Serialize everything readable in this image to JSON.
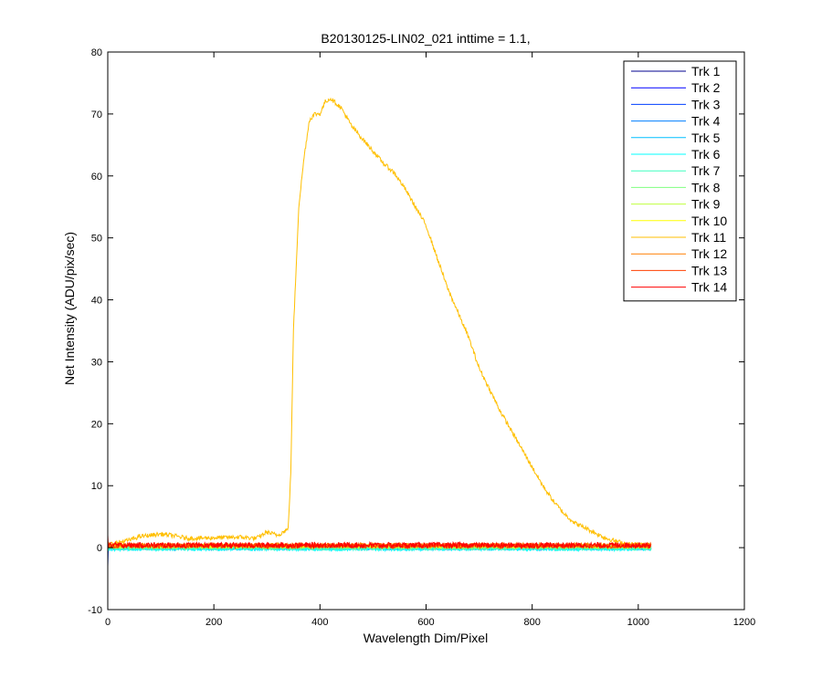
{
  "chart_data": {
    "type": "line",
    "title": "B20130125-LIN02_021 inttime = 1.1,",
    "xlabel": "Wavelength Dim/Pixel",
    "ylabel": "Net Intensity (ADU/pix/sec)",
    "xlim": [
      0,
      1200
    ],
    "ylim": [
      -10,
      80
    ],
    "xticks": [
      0,
      200,
      400,
      600,
      800,
      1000,
      1200
    ],
    "yticks": [
      -10,
      0,
      10,
      20,
      30,
      40,
      50,
      60,
      70,
      80
    ],
    "grid": false,
    "legend_position": "top-right",
    "series": [
      {
        "name": "Trk 1",
        "color": "#00008f",
        "baseline": 0.2,
        "noise": 0.25
      },
      {
        "name": "Trk 2",
        "color": "#0000ff",
        "baseline": 0.1,
        "noise": 0.3
      },
      {
        "name": "Trk 3",
        "color": "#003fff",
        "baseline": 0.0,
        "noise": 0.3
      },
      {
        "name": "Trk 4",
        "color": "#007fff",
        "baseline": 0.0,
        "noise": 0.3
      },
      {
        "name": "Trk 5",
        "color": "#00bfff",
        "baseline": -0.1,
        "noise": 0.3
      },
      {
        "name": "Trk 6",
        "color": "#00ffff",
        "baseline": -0.2,
        "noise": 0.3
      },
      {
        "name": "Trk 7",
        "color": "#3fffbf",
        "baseline": -0.1,
        "noise": 0.3
      },
      {
        "name": "Trk 8",
        "color": "#7fff7f",
        "baseline": 0.1,
        "noise": 0.3
      },
      {
        "name": "Trk 9",
        "color": "#bfff3f",
        "baseline": 0.2,
        "noise": 0.3
      },
      {
        "name": "Trk 10",
        "color": "#ffff00",
        "baseline": 0.3,
        "noise": 0.3
      },
      {
        "name": "Trk 11",
        "color": "#ffbf00",
        "noise": 0.35,
        "points": [
          [
            0,
            0.5
          ],
          [
            40,
            1.2
          ],
          [
            60,
            1.8
          ],
          [
            100,
            2.2
          ],
          [
            120,
            2.0
          ],
          [
            150,
            1.5
          ],
          [
            200,
            1.6
          ],
          [
            250,
            1.7
          ],
          [
            280,
            1.5
          ],
          [
            300,
            2.5
          ],
          [
            320,
            2.0
          ],
          [
            340,
            3.0
          ],
          [
            345,
            12
          ],
          [
            350,
            35
          ],
          [
            355,
            45
          ],
          [
            360,
            55
          ],
          [
            370,
            63
          ],
          [
            380,
            69
          ],
          [
            390,
            70
          ],
          [
            400,
            70
          ],
          [
            410,
            72
          ],
          [
            420,
            72.5
          ],
          [
            440,
            71
          ],
          [
            460,
            68
          ],
          [
            480,
            66
          ],
          [
            500,
            64
          ],
          [
            520,
            62
          ],
          [
            540,
            60.5
          ],
          [
            560,
            58
          ],
          [
            580,
            55
          ],
          [
            600,
            52
          ],
          [
            620,
            47
          ],
          [
            640,
            42
          ],
          [
            660,
            38
          ],
          [
            680,
            34
          ],
          [
            700,
            29
          ],
          [
            720,
            25.5
          ],
          [
            740,
            22
          ],
          [
            760,
            19
          ],
          [
            780,
            16
          ],
          [
            800,
            13
          ],
          [
            820,
            10
          ],
          [
            840,
            7.5
          ],
          [
            860,
            5.5
          ],
          [
            880,
            4.0
          ],
          [
            900,
            3.2
          ],
          [
            920,
            2.3
          ],
          [
            940,
            1.5
          ],
          [
            960,
            1.0
          ],
          [
            980,
            0.6
          ],
          [
            1000,
            0.5
          ],
          [
            1024,
            0.4
          ]
        ]
      },
      {
        "name": "Trk 12",
        "color": "#ff7f00",
        "baseline": 0.4,
        "noise": 0.35
      },
      {
        "name": "Trk 13",
        "color": "#ff3f00",
        "baseline": 0.3,
        "noise": 0.4
      },
      {
        "name": "Trk 14",
        "color": "#ff0000",
        "baseline": 0.4,
        "noise": 0.45
      }
    ],
    "x_count": 1024
  }
}
